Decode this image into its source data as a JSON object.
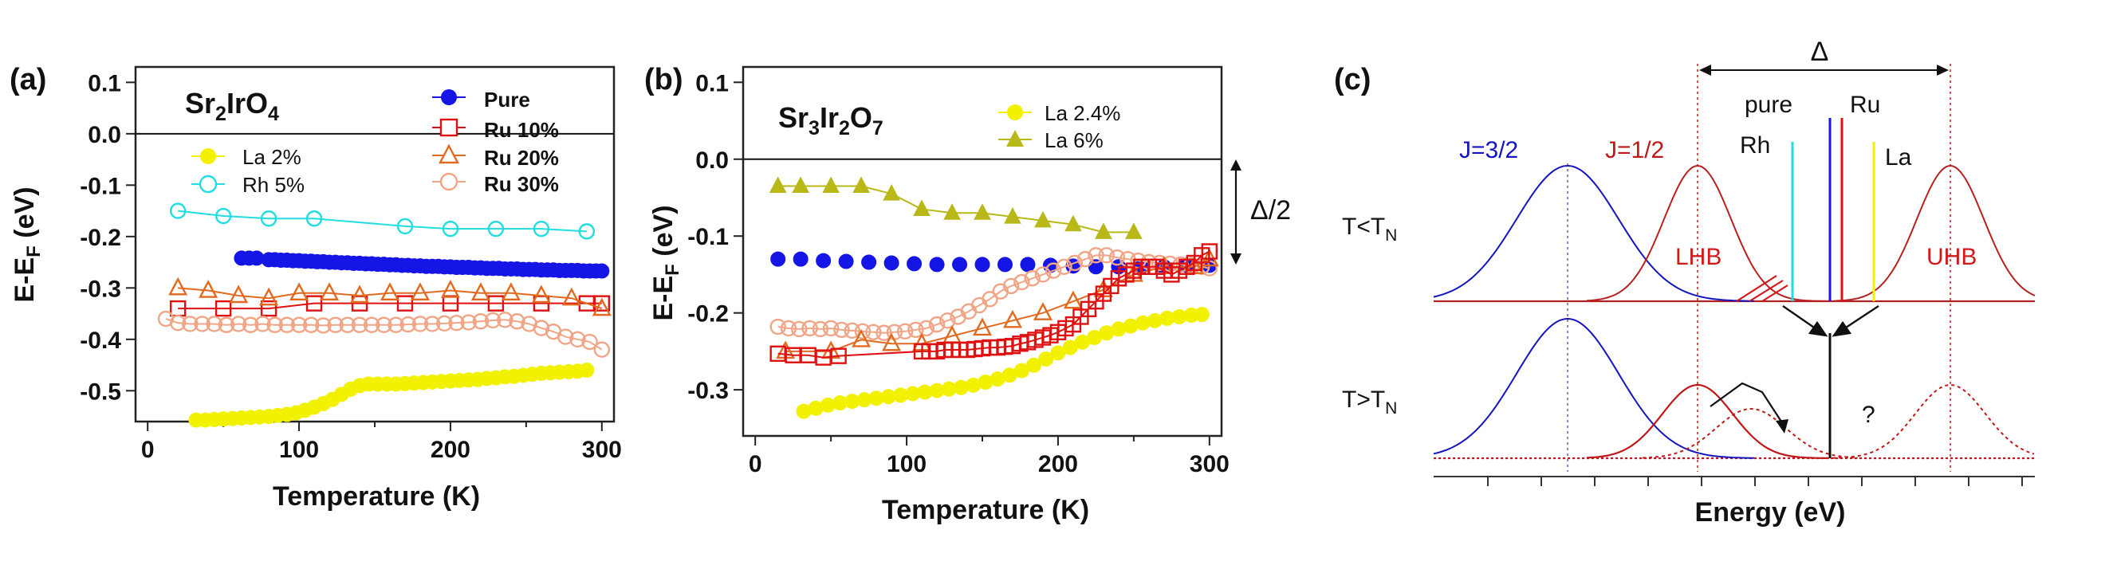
{
  "colors": {
    "pure": "#1515e6",
    "ru10": "#e01010",
    "ru20": "#e06a20",
    "ru30": "#f0a586",
    "la": "#f2f200",
    "rh": "#22dde0",
    "la6": "#b8b818",
    "red": "#d21818",
    "blue": "#1515c0",
    "darkred": "#b82020"
  },
  "chart_data": [
    {
      "panel": "(a)",
      "type": "scatter",
      "title": "Sr2IrO4",
      "title_parts": {
        "a": "Sr",
        "b": "2",
        "c": "IrO",
        "d": "4"
      },
      "xlabel": "Temperature (K)",
      "ylabel": {
        "main": "E-E",
        "sub": "F",
        "tail": " (eV)"
      },
      "xlim": [
        -8,
        308
      ],
      "ylim": [
        -0.56,
        0.13
      ],
      "x_ticks": [
        0,
        100,
        200,
        300
      ],
      "x_tick_labels": [
        "0",
        "100",
        "200",
        "300"
      ],
      "y_ticks": [
        0.1,
        0.0,
        -0.1,
        -0.2,
        -0.3,
        -0.4,
        -0.5
      ],
      "y_tick_labels": [
        "0.1",
        "0.0",
        "-0.1",
        "-0.2",
        "-0.3",
        "-0.4",
        "-0.5"
      ],
      "legend": [
        "Pure",
        "Ru 10%",
        "Ru 20%",
        "Ru 30%",
        "La 2%",
        "Rh 5%"
      ],
      "series": [
        {
          "name": "Pure",
          "key": "pure",
          "marker": "circle-filled",
          "line": false,
          "x": [
            62,
            67,
            72,
            80,
            84,
            88,
            92,
            96,
            100,
            104,
            108,
            112,
            116,
            120,
            124,
            128,
            132,
            136,
            140,
            144,
            148,
            152,
            156,
            160,
            164,
            168,
            172,
            176,
            180,
            184,
            188,
            192,
            196,
            200,
            204,
            208,
            212,
            216,
            220,
            224,
            228,
            232,
            236,
            240,
            244,
            248,
            252,
            256,
            260,
            264,
            268,
            272,
            276,
            280,
            284,
            288,
            292,
            296,
            300
          ],
          "y": [
            -0.242,
            -0.242,
            -0.242,
            -0.245,
            -0.245,
            -0.246,
            -0.246,
            -0.247,
            -0.247,
            -0.248,
            -0.248,
            -0.249,
            -0.249,
            -0.25,
            -0.25,
            -0.251,
            -0.251,
            -0.252,
            -0.252,
            -0.253,
            -0.253,
            -0.254,
            -0.254,
            -0.255,
            -0.255,
            -0.256,
            -0.256,
            -0.257,
            -0.257,
            -0.258,
            -0.258,
            -0.258,
            -0.259,
            -0.259,
            -0.26,
            -0.26,
            -0.26,
            -0.261,
            -0.261,
            -0.262,
            -0.262,
            -0.262,
            -0.263,
            -0.263,
            -0.263,
            -0.264,
            -0.264,
            -0.264,
            -0.265,
            -0.265,
            -0.265,
            -0.266,
            -0.266,
            -0.266,
            -0.266,
            -0.267,
            -0.267,
            -0.267,
            -0.267
          ]
        },
        {
          "name": "Ru 10%",
          "key": "ru10",
          "marker": "square-open",
          "line": true,
          "x": [
            20,
            50,
            80,
            110,
            140,
            170,
            200,
            230,
            260,
            290,
            300
          ],
          "y": [
            -0.34,
            -0.34,
            -0.34,
            -0.33,
            -0.33,
            -0.33,
            -0.33,
            -0.33,
            -0.33,
            -0.33,
            -0.33
          ]
        },
        {
          "name": "Ru 20%",
          "key": "ru20",
          "marker": "triangle-open",
          "line": true,
          "x": [
            20,
            40,
            60,
            80,
            100,
            120,
            140,
            160,
            180,
            200,
            220,
            240,
            260,
            280,
            300
          ],
          "y": [
            -0.3,
            -0.305,
            -0.315,
            -0.32,
            -0.31,
            -0.31,
            -0.315,
            -0.31,
            -0.31,
            -0.305,
            -0.31,
            -0.31,
            -0.315,
            -0.32,
            -0.34
          ]
        },
        {
          "name": "Ru 30%",
          "key": "ru30",
          "marker": "circle-open",
          "line": true,
          "x": [
            12,
            20,
            28,
            36,
            44,
            52,
            60,
            68,
            76,
            84,
            92,
            100,
            108,
            116,
            124,
            132,
            140,
            148,
            156,
            164,
            172,
            180,
            188,
            196,
            204,
            212,
            220,
            228,
            236,
            244,
            252,
            260,
            268,
            276,
            284,
            292,
            300
          ],
          "y": [
            -0.36,
            -0.368,
            -0.37,
            -0.37,
            -0.37,
            -0.372,
            -0.37,
            -0.372,
            -0.37,
            -0.372,
            -0.372,
            -0.372,
            -0.372,
            -0.373,
            -0.372,
            -0.372,
            -0.372,
            -0.372,
            -0.372,
            -0.372,
            -0.371,
            -0.37,
            -0.37,
            -0.369,
            -0.368,
            -0.367,
            -0.365,
            -0.363,
            -0.362,
            -0.365,
            -0.37,
            -0.378,
            -0.385,
            -0.395,
            -0.4,
            -0.405,
            -0.42
          ]
        },
        {
          "name": "La 2%",
          "key": "la",
          "marker": "circle-filled",
          "line": false,
          "x": [
            32,
            38,
            44,
            50,
            56,
            62,
            68,
            74,
            80,
            86,
            92,
            98,
            104,
            110,
            116,
            122,
            128,
            134,
            140,
            146,
            152,
            158,
            164,
            170,
            176,
            182,
            188,
            194,
            200,
            206,
            212,
            218,
            224,
            230,
            236,
            242,
            248,
            254,
            260,
            266,
            272,
            278,
            284,
            290
          ],
          "y": [
            -0.557,
            -0.557,
            -0.556,
            -0.555,
            -0.554,
            -0.553,
            -0.552,
            -0.551,
            -0.55,
            -0.548,
            -0.546,
            -0.543,
            -0.538,
            -0.532,
            -0.525,
            -0.517,
            -0.507,
            -0.497,
            -0.49,
            -0.487,
            -0.487,
            -0.487,
            -0.487,
            -0.486,
            -0.485,
            -0.484,
            -0.483,
            -0.482,
            -0.481,
            -0.48,
            -0.479,
            -0.478,
            -0.476,
            -0.475,
            -0.473,
            -0.472,
            -0.47,
            -0.468,
            -0.466,
            -0.465,
            -0.464,
            -0.463,
            -0.462,
            -0.46
          ]
        },
        {
          "name": "Rh 5%",
          "key": "rh",
          "marker": "circle-open",
          "line": true,
          "x": [
            20,
            50,
            80,
            110,
            170,
            200,
            230,
            260,
            290
          ],
          "y": [
            -0.15,
            -0.16,
            -0.165,
            -0.165,
            -0.18,
            -0.185,
            -0.185,
            -0.185,
            -0.19
          ]
        }
      ]
    },
    {
      "panel": "(b)",
      "type": "scatter",
      "title": "Sr3Ir2O7",
      "title_parts": {
        "a": "Sr",
        "b": "3",
        "c": "Ir",
        "d": "2",
        "e": "O",
        "f": "7"
      },
      "xlabel": "Temperature (K)",
      "ylabel": {
        "main": "E-E",
        "sub": "F",
        "tail": " (eV)"
      },
      "xlim": [
        -8,
        308
      ],
      "ylim": [
        -0.36,
        0.12
      ],
      "x_ticks": [
        0,
        100,
        200,
        300
      ],
      "x_tick_labels": [
        "0",
        "100",
        "200",
        "300"
      ],
      "y_ticks": [
        0.1,
        0.0,
        -0.1,
        -0.2,
        -0.3
      ],
      "y_tick_labels": [
        "0.1",
        "0.0",
        "-0.1",
        "-0.2",
        "-0.3"
      ],
      "legend": [
        "La 2.4%",
        "La 6%"
      ],
      "annotation": "Δ/2",
      "series": [
        {
          "name": "La 6%",
          "key": "la6",
          "marker": "triangle-filled",
          "line": true,
          "x": [
            15,
            30,
            50,
            70,
            90,
            110,
            130,
            150,
            170,
            190,
            210,
            230,
            250
          ],
          "y": [
            -0.035,
            -0.035,
            -0.035,
            -0.035,
            -0.045,
            -0.065,
            -0.07,
            -0.07,
            -0.075,
            -0.08,
            -0.085,
            -0.095,
            -0.095
          ]
        },
        {
          "name": "Pure",
          "key": "pure",
          "marker": "circle-filled",
          "line": false,
          "x": [
            15,
            30,
            45,
            60,
            75,
            90,
            105,
            120,
            135,
            150,
            165,
            180,
            195,
            210,
            225,
            240,
            255,
            270,
            285,
            300
          ],
          "y": [
            -0.13,
            -0.13,
            -0.132,
            -0.133,
            -0.134,
            -0.135,
            -0.136,
            -0.137,
            -0.137,
            -0.137,
            -0.137,
            -0.137,
            -0.138,
            -0.139,
            -0.14,
            -0.14,
            -0.14,
            -0.14,
            -0.138,
            -0.138
          ]
        },
        {
          "name": "Ru 30%",
          "key": "ru30",
          "marker": "circle-open",
          "line": true,
          "x": [
            15,
            22,
            29,
            36,
            43,
            50,
            57,
            64,
            71,
            78,
            85,
            92,
            99,
            106,
            113,
            120,
            127,
            134,
            141,
            148,
            155,
            162,
            169,
            176,
            183,
            190,
            197,
            204,
            211,
            218,
            225,
            232,
            239,
            246,
            253,
            260,
            267,
            274,
            281,
            288,
            295,
            300
          ],
          "y": [
            -0.218,
            -0.22,
            -0.221,
            -0.22,
            -0.221,
            -0.22,
            -0.222,
            -0.223,
            -0.224,
            -0.225,
            -0.226,
            -0.225,
            -0.224,
            -0.222,
            -0.22,
            -0.215,
            -0.21,
            -0.205,
            -0.198,
            -0.19,
            -0.182,
            -0.172,
            -0.165,
            -0.16,
            -0.155,
            -0.15,
            -0.145,
            -0.14,
            -0.135,
            -0.13,
            -0.125,
            -0.125,
            -0.128,
            -0.13,
            -0.132,
            -0.134,
            -0.135,
            -0.136,
            -0.137,
            -0.138,
            -0.14,
            -0.142
          ]
        },
        {
          "name": "Ru 20%",
          "key": "ru20",
          "marker": "triangle-open",
          "line": true,
          "x": [
            20,
            50,
            70,
            90,
            110,
            130,
            150,
            170,
            190,
            210,
            230,
            250,
            270,
            290,
            300
          ],
          "y": [
            -0.25,
            -0.25,
            -0.235,
            -0.24,
            -0.24,
            -0.23,
            -0.22,
            -0.21,
            -0.2,
            -0.185,
            -0.17,
            -0.15,
            -0.14,
            -0.14,
            -0.13
          ]
        },
        {
          "name": "Ru 10%",
          "key": "ru10",
          "marker": "square-open",
          "line": true,
          "x": [
            15,
            25,
            35,
            45,
            55,
            110,
            115,
            120,
            125,
            130,
            135,
            140,
            145,
            150,
            155,
            160,
            165,
            170,
            175,
            180,
            185,
            190,
            195,
            200,
            205,
            210,
            215,
            220,
            225,
            230,
            235,
            240,
            245,
            250,
            255,
            260,
            265,
            270,
            275,
            280,
            285,
            290,
            295,
            300
          ],
          "y": [
            -0.253,
            -0.255,
            -0.255,
            -0.258,
            -0.256,
            -0.25,
            -0.25,
            -0.25,
            -0.248,
            -0.248,
            -0.248,
            -0.248,
            -0.247,
            -0.246,
            -0.245,
            -0.245,
            -0.244,
            -0.243,
            -0.24,
            -0.238,
            -0.235,
            -0.232,
            -0.229,
            -0.225,
            -0.22,
            -0.215,
            -0.205,
            -0.195,
            -0.185,
            -0.175,
            -0.165,
            -0.155,
            -0.15,
            -0.145,
            -0.14,
            -0.14,
            -0.14,
            -0.145,
            -0.15,
            -0.145,
            -0.14,
            -0.135,
            -0.125,
            -0.12
          ]
        },
        {
          "name": "La 2.4%",
          "key": "la",
          "marker": "circle-filled",
          "line": false,
          "x": [
            32,
            40,
            48,
            56,
            64,
            72,
            80,
            88,
            96,
            104,
            112,
            120,
            128,
            136,
            144,
            152,
            160,
            168,
            176,
            184,
            192,
            200,
            208,
            216,
            224,
            232,
            240,
            248,
            256,
            264,
            272,
            280,
            288,
            295
          ],
          "y": [
            -0.328,
            -0.324,
            -0.32,
            -0.317,
            -0.315,
            -0.313,
            -0.311,
            -0.309,
            -0.307,
            -0.305,
            -0.303,
            -0.301,
            -0.299,
            -0.297,
            -0.294,
            -0.29,
            -0.286,
            -0.281,
            -0.275,
            -0.268,
            -0.26,
            -0.252,
            -0.245,
            -0.238,
            -0.232,
            -0.226,
            -0.221,
            -0.217,
            -0.213,
            -0.21,
            -0.207,
            -0.205,
            -0.203,
            -0.202
          ]
        }
      ]
    }
  ],
  "panel_c": {
    "label": "(c)",
    "delta": "Δ",
    "t_low": {
      "main": "T<T",
      "sub": "N"
    },
    "t_high": {
      "main": "T>T",
      "sub": "N"
    },
    "j32": "J=3/2",
    "j12": "J=1/2",
    "lhb": "LHB",
    "uhb": "UHB",
    "pure": "pure",
    "ru": "Ru",
    "rh": "Rh",
    "la": "La",
    "question": "?",
    "xlabel": "Energy (eV)"
  }
}
